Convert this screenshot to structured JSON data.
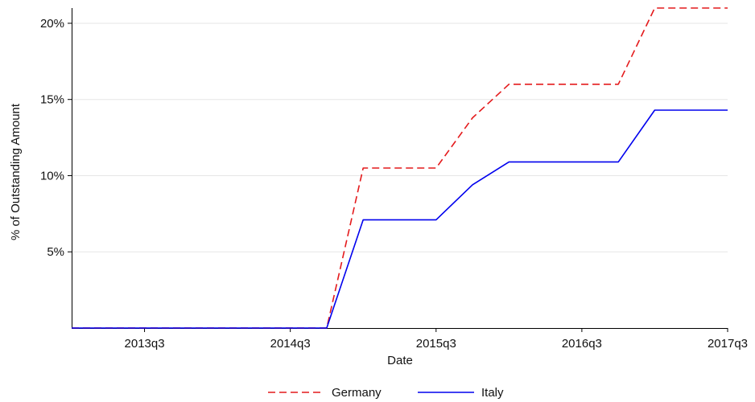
{
  "chart_data": {
    "type": "line",
    "xlabel": "Date",
    "ylabel": "% of Outstanding Amount",
    "x_ticks": [
      "2013q3",
      "2014q3",
      "2015q3",
      "2016q3",
      "2017q3"
    ],
    "y_ticks": [
      "5%",
      "10%",
      "15%",
      "20%"
    ],
    "y_tick_values": [
      5,
      10,
      15,
      20
    ],
    "x_range": [
      "2013q1",
      "2017q3"
    ],
    "y_range": [
      0,
      21
    ],
    "grid": "horizontal",
    "legend_position": "bottom",
    "series": [
      {
        "name": "Germany",
        "color": "#e41a1c",
        "style": "dashed",
        "points": [
          [
            "2013q1",
            0
          ],
          [
            "2014q4",
            0
          ],
          [
            "2015q1",
            10.5
          ],
          [
            "2015q3",
            10.5
          ],
          [
            "2015q4",
            13.8
          ],
          [
            "2016q1",
            16.0
          ],
          [
            "2016q4",
            16.0
          ],
          [
            "2017q1",
            21.0
          ],
          [
            "2017q3",
            21.0
          ]
        ]
      },
      {
        "name": "Italy",
        "color": "#0000ee",
        "style": "solid",
        "points": [
          [
            "2013q1",
            0
          ],
          [
            "2014q4",
            0
          ],
          [
            "2015q1",
            7.1
          ],
          [
            "2015q3",
            7.1
          ],
          [
            "2015q4",
            9.4
          ],
          [
            "2016q1",
            10.9
          ],
          [
            "2016q4",
            10.9
          ],
          [
            "2017q1",
            14.3
          ],
          [
            "2017q3",
            14.3
          ]
        ]
      }
    ]
  }
}
